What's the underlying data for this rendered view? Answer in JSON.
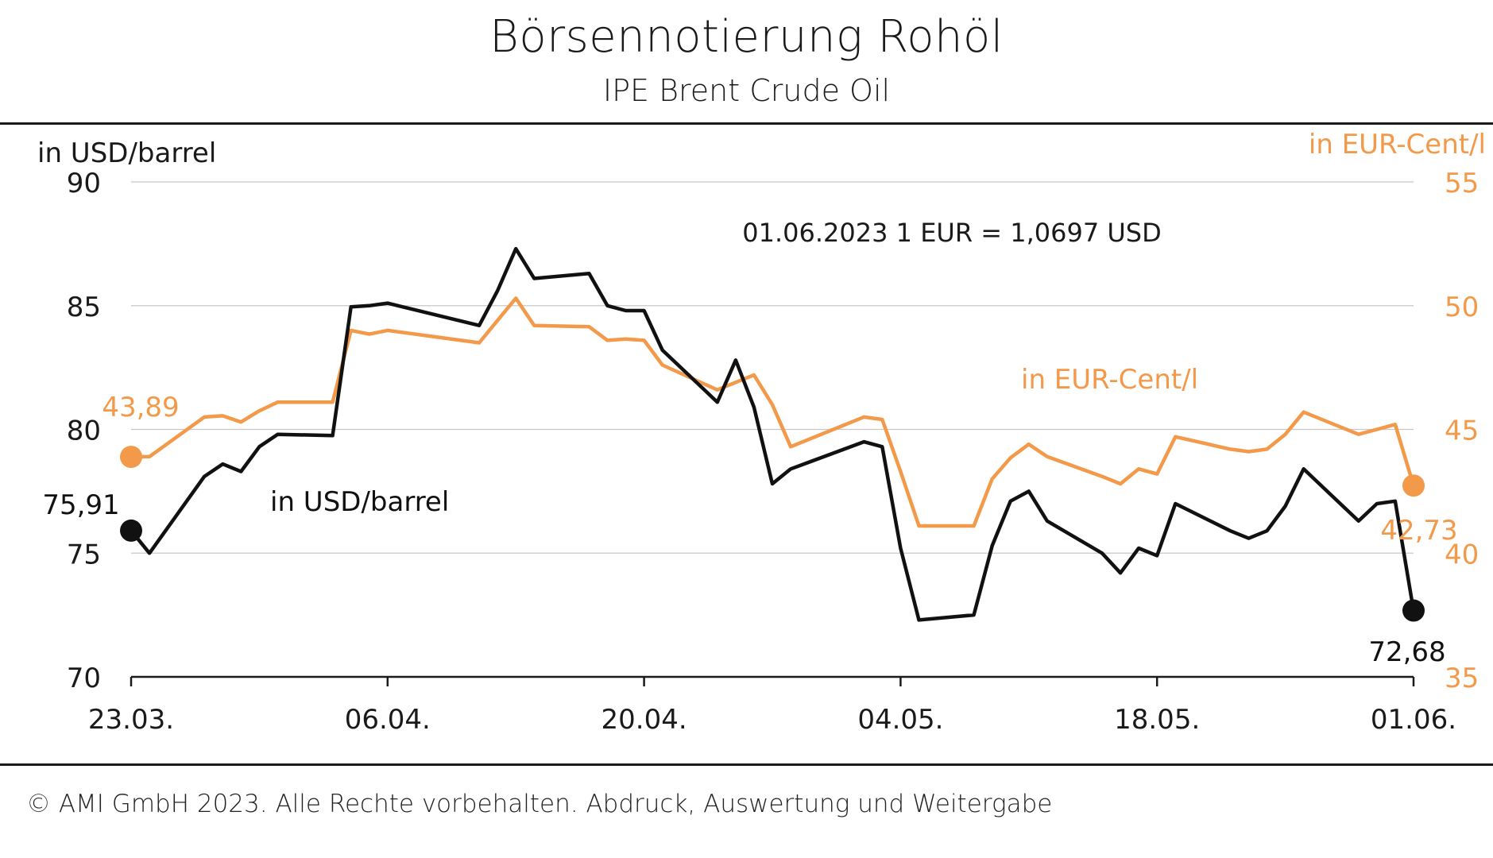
{
  "header": {
    "title": "Börsennotierung Rohöl",
    "subtitle": "IPE Brent Crude Oil"
  },
  "footer": {
    "copyright": "© AMI GmbH 2023.  Alle Rechte vorbehalten. Abdruck, Auswertung und Weitergabe"
  },
  "colors": {
    "usd": "#111111",
    "eur": "#f2994a",
    "grid": "#c8c8c8",
    "axis": "#1a1a1a"
  },
  "chart_data": {
    "type": "line",
    "annotation": "01.06.2023  1 EUR = 1,0697 USD",
    "grid": true,
    "x_axis": {
      "start": "2023-03-23",
      "end": "2023-06-01",
      "ticks": [
        "23.03.",
        "06.04.",
        "20.04.",
        "04.05.",
        "18.05.",
        "01.06."
      ]
    },
    "y_left": {
      "label": "in USD/barrel",
      "min": 70,
      "max": 90,
      "ticks": [
        "70",
        "75",
        "80",
        "85",
        "90"
      ]
    },
    "y_right": {
      "label": "in EUR-Cent/l",
      "min": 35,
      "max": 55,
      "ticks": [
        "35",
        "40",
        "45",
        "50",
        "55"
      ]
    },
    "series": [
      {
        "name": "in USD/barrel",
        "axis": "left",
        "start_label": "75,91",
        "end_label": "72,68",
        "x": [
          "2023-03-23",
          "2023-03-24",
          "2023-03-27",
          "2023-03-28",
          "2023-03-29",
          "2023-03-30",
          "2023-03-31",
          "2023-04-03",
          "2023-04-04",
          "2023-04-05",
          "2023-04-06",
          "2023-04-11",
          "2023-04-12",
          "2023-04-13",
          "2023-04-14",
          "2023-04-17",
          "2023-04-18",
          "2023-04-19",
          "2023-04-20",
          "2023-04-21",
          "2023-04-24",
          "2023-04-25",
          "2023-04-26",
          "2023-04-27",
          "2023-04-28",
          "2023-05-02",
          "2023-05-03",
          "2023-05-04",
          "2023-05-05",
          "2023-05-08",
          "2023-05-09",
          "2023-05-10",
          "2023-05-11",
          "2023-05-12",
          "2023-05-15",
          "2023-05-16",
          "2023-05-17",
          "2023-05-18",
          "2023-05-19",
          "2023-05-22",
          "2023-05-23",
          "2023-05-24",
          "2023-05-25",
          "2023-05-26",
          "2023-05-29",
          "2023-05-30",
          "2023-05-31",
          "2023-06-01"
        ],
        "y": [
          75.91,
          75.0,
          78.1,
          78.6,
          78.3,
          79.3,
          79.8,
          79.75,
          84.95,
          85.0,
          85.1,
          84.2,
          85.6,
          87.3,
          86.1,
          86.3,
          85.0,
          84.8,
          84.8,
          83.2,
          81.1,
          82.8,
          80.9,
          77.8,
          78.4,
          79.5,
          79.3,
          75.2,
          72.3,
          72.5,
          75.3,
          77.1,
          77.5,
          76.3,
          75.0,
          74.2,
          75.2,
          74.9,
          77.0,
          75.9,
          75.6,
          75.9,
          76.9,
          78.4,
          76.3,
          77.0,
          77.1,
          72.68
        ]
      },
      {
        "name": "in EUR-Cent/l",
        "axis": "right",
        "start_label": "43,89",
        "end_label": "42,73",
        "x": [
          "2023-03-23",
          "2023-03-24",
          "2023-03-27",
          "2023-03-28",
          "2023-03-29",
          "2023-03-30",
          "2023-03-31",
          "2023-04-03",
          "2023-04-04",
          "2023-04-05",
          "2023-04-06",
          "2023-04-11",
          "2023-04-12",
          "2023-04-13",
          "2023-04-14",
          "2023-04-17",
          "2023-04-18",
          "2023-04-19",
          "2023-04-20",
          "2023-04-21",
          "2023-04-24",
          "2023-04-25",
          "2023-04-26",
          "2023-04-27",
          "2023-04-28",
          "2023-05-02",
          "2023-05-03",
          "2023-05-04",
          "2023-05-05",
          "2023-05-08",
          "2023-05-09",
          "2023-05-10",
          "2023-05-11",
          "2023-05-12",
          "2023-05-15",
          "2023-05-16",
          "2023-05-17",
          "2023-05-18",
          "2023-05-19",
          "2023-05-22",
          "2023-05-23",
          "2023-05-24",
          "2023-05-25",
          "2023-05-26",
          "2023-05-29",
          "2023-05-30",
          "2023-05-31",
          "2023-06-01"
        ],
        "y": [
          43.89,
          43.9,
          45.5,
          45.55,
          45.3,
          45.75,
          46.1,
          46.1,
          49.0,
          48.85,
          49.0,
          48.5,
          49.4,
          50.3,
          49.2,
          49.15,
          48.6,
          48.65,
          48.6,
          47.6,
          46.6,
          46.9,
          47.2,
          46.0,
          44.3,
          45.5,
          45.4,
          43.3,
          41.1,
          41.1,
          43.0,
          43.85,
          44.4,
          43.9,
          43.1,
          42.8,
          43.4,
          43.2,
          44.7,
          44.2,
          44.1,
          44.2,
          44.8,
          45.7,
          44.8,
          45.0,
          45.2,
          42.73
        ]
      }
    ]
  }
}
